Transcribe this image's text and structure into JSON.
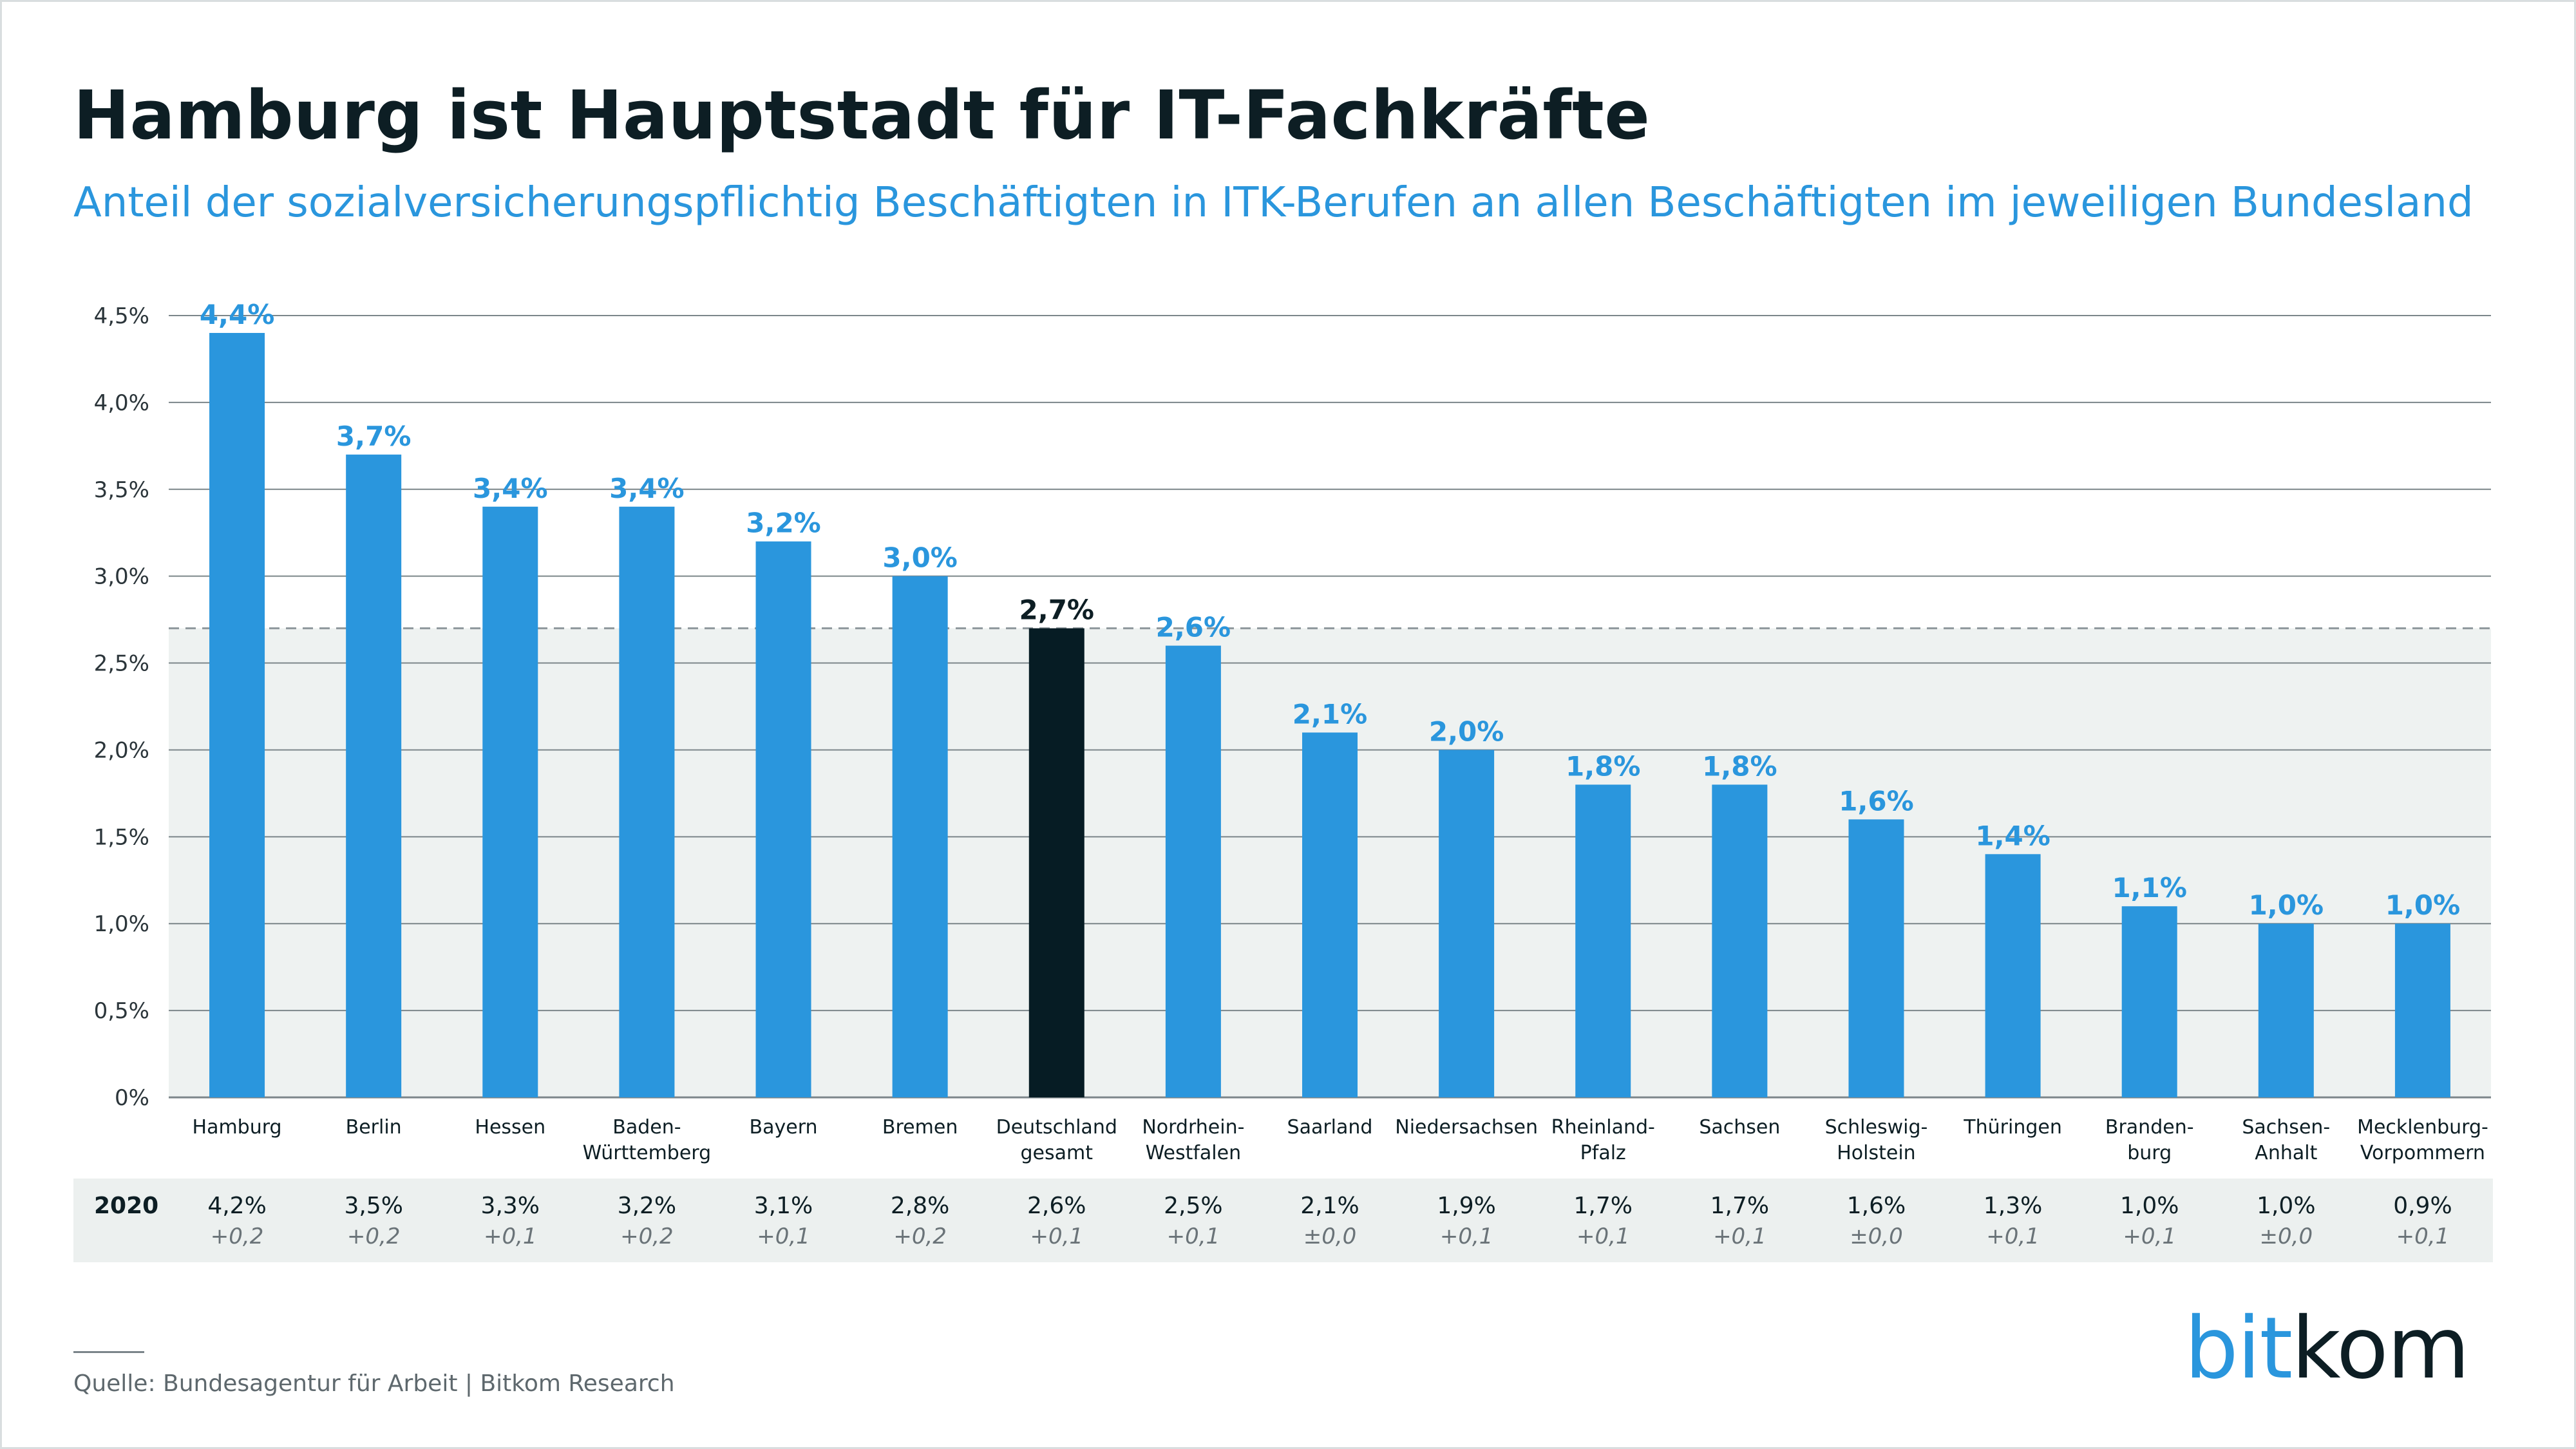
{
  "title": "Hamburg ist Hauptstadt für IT-Fachkräfte",
  "subtitle": "Anteil der sozialversicherungspflichtig Beschäftigten in ITK-Berufen an allen Beschäftigten im jeweiligen Bundesland",
  "colors": {
    "bar": "#2a96dd",
    "highlight_bar": "#061c24",
    "value_label": "#2a96dd",
    "highlight_label": "#0d1e24",
    "plot_bg": "#eef2f1",
    "grid": "#7c868a",
    "text": "#0d1e24"
  },
  "chart_data": {
    "type": "bar",
    "title": "Hamburg ist Hauptstadt für IT-Fachkräfte",
    "subtitle": "Anteil der sozialversicherungspflichtig Beschäftigten in ITK-Berufen an allen Beschäftigten im jeweiligen Bundesland",
    "xlabel": "",
    "ylabel": "",
    "ylim": [
      0,
      4.5
    ],
    "yticks": [
      0,
      0.5,
      1.0,
      1.5,
      2.0,
      2.5,
      3.0,
      3.5,
      4.0,
      4.5
    ],
    "ytick_labels": [
      "0%",
      "0,5%",
      "1,0%",
      "1,5%",
      "2,0%",
      "2,5%",
      "3,0%",
      "3,5%",
      "4,0%",
      "4,5%"
    ],
    "grid": true,
    "categories": [
      [
        "Hamburg"
      ],
      [
        "Berlin"
      ],
      [
        "Hessen"
      ],
      [
        "Baden-",
        "Württemberg"
      ],
      [
        "Bayern"
      ],
      [
        "Bremen"
      ],
      [
        "Deutschland",
        "gesamt"
      ],
      [
        "Nordrhein-",
        "Westfalen"
      ],
      [
        "Saarland"
      ],
      [
        "Niedersachsen"
      ],
      [
        "Rheinland-",
        "Pfalz"
      ],
      [
        "Sachsen"
      ],
      [
        "Schleswig-",
        "Holstein"
      ],
      [
        "Thüringen"
      ],
      [
        "Branden-",
        "burg"
      ],
      [
        "Sachsen-",
        "Anhalt"
      ],
      [
        "Mecklenburg-",
        "Vorpommern"
      ]
    ],
    "values": [
      4.4,
      3.7,
      3.4,
      3.4,
      3.2,
      3.0,
      2.7,
      2.6,
      2.1,
      2.0,
      1.8,
      1.8,
      1.6,
      1.4,
      1.1,
      1.0,
      1.0
    ],
    "value_labels": [
      "4,4%",
      "3,7%",
      "3,4%",
      "3,4%",
      "3,2%",
      "3,0%",
      "2,7%",
      "2,6%",
      "2,1%",
      "2,0%",
      "1,8%",
      "1,8%",
      "1,6%",
      "1,4%",
      "1,1%",
      "1,0%",
      "1,0%"
    ],
    "highlight_index": 6,
    "reference_line": {
      "value": 2.7,
      "style": "dashed"
    },
    "comparison": {
      "label": "2020",
      "values": [
        "4,2%",
        "3,5%",
        "3,3%",
        "3,2%",
        "3,1%",
        "2,8%",
        "2,6%",
        "2,5%",
        "2,1%",
        "1,9%",
        "1,7%",
        "1,7%",
        "1,6%",
        "1,3%",
        "1,0%",
        "1,0%",
        "0,9%"
      ],
      "changes": [
        "+0,2",
        "+0,2",
        "+0,1",
        "+0,2",
        "+0,1",
        "+0,2",
        "+0,1",
        "+0,1",
        "±0,0",
        "+0,1",
        "+0,1",
        "+0,1",
        "±0,0",
        "+0,1",
        "+0,1",
        "±0,0",
        "+0,1"
      ]
    }
  },
  "footer": {
    "source": "Quelle: Bundesagentur für Arbeit | Bitkom Research",
    "logo_text_a": "bit",
    "logo_text_b": "kom"
  }
}
